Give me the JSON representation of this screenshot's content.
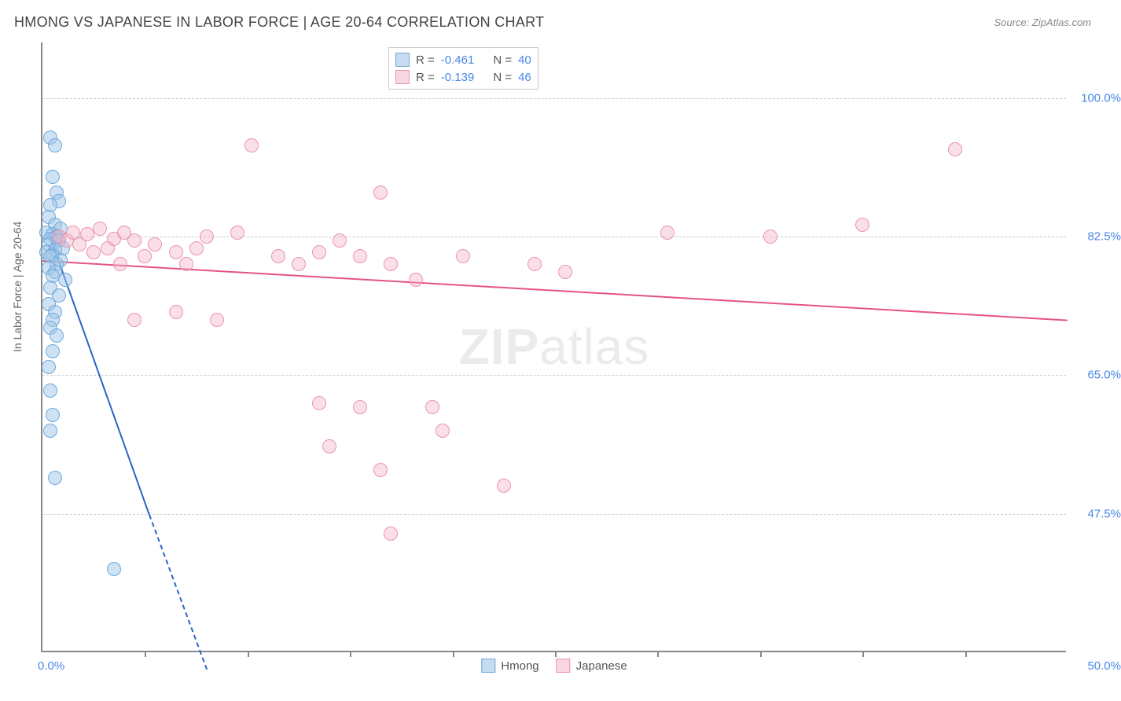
{
  "title": "HMONG VS JAPANESE IN LABOR FORCE | AGE 20-64 CORRELATION CHART",
  "source": "Source: ZipAtlas.com",
  "watermark": {
    "bold": "ZIP",
    "rest": "atlas"
  },
  "chart": {
    "type": "scatter",
    "xlim": [
      0,
      50
    ],
    "ylim": [
      30,
      107
    ],
    "x_axis_label_left": "0.0%",
    "x_axis_label_right": "50.0%",
    "y_ticks": [
      {
        "v": 100.0,
        "label": "100.0%"
      },
      {
        "v": 82.5,
        "label": "82.5%"
      },
      {
        "v": 65.0,
        "label": "65.0%"
      },
      {
        "v": 47.5,
        "label": "47.5%"
      }
    ],
    "y_axis_title": "In Labor Force | Age 20-64",
    "x_minor_ticks": [
      5,
      10,
      15,
      20,
      25,
      30,
      35,
      40,
      45
    ],
    "background_color": "#ffffff",
    "grid_color": "#cccccc",
    "axis_color": "#888888",
    "label_color": "#4a86e8",
    "series": [
      {
        "name": "Hmong",
        "fill": "rgba(160,198,232,0.5)",
        "stroke": "#6fa8dc",
        "trend_color": "#2966c4",
        "R": "-0.461",
        "N": "40",
        "trend": {
          "x1": 0.3,
          "y1": 83,
          "x2": 5.2,
          "y2": 47.5
        },
        "trend_dash": {
          "x1": 5.2,
          "y1": 47.5,
          "x2": 8.0,
          "y2": 28
        },
        "points": [
          [
            0.4,
            95
          ],
          [
            0.6,
            94
          ],
          [
            0.5,
            90
          ],
          [
            0.7,
            88
          ],
          [
            0.8,
            87
          ],
          [
            0.4,
            86.5
          ],
          [
            0.3,
            85
          ],
          [
            0.6,
            84
          ],
          [
            0.9,
            83.5
          ],
          [
            0.2,
            83
          ],
          [
            0.5,
            82.8
          ],
          [
            0.7,
            82.5
          ],
          [
            0.4,
            82.2
          ],
          [
            0.8,
            82
          ],
          [
            0.3,
            81.5
          ],
          [
            1.0,
            81
          ],
          [
            0.6,
            80.8
          ],
          [
            0.2,
            80.5
          ],
          [
            0.5,
            80.2
          ],
          [
            0.4,
            80
          ],
          [
            0.9,
            79.5
          ],
          [
            0.7,
            79
          ],
          [
            0.3,
            78.5
          ],
          [
            0.6,
            78
          ],
          [
            0.5,
            77.5
          ],
          [
            1.1,
            77
          ],
          [
            0.4,
            76
          ],
          [
            0.8,
            75
          ],
          [
            0.3,
            74
          ],
          [
            0.6,
            73
          ],
          [
            0.5,
            72
          ],
          [
            0.4,
            71
          ],
          [
            0.7,
            70
          ],
          [
            0.5,
            68
          ],
          [
            0.3,
            66
          ],
          [
            0.4,
            63
          ],
          [
            0.5,
            60
          ],
          [
            0.6,
            52
          ],
          [
            3.5,
            40.5
          ],
          [
            0.4,
            58
          ]
        ]
      },
      {
        "name": "Japanese",
        "fill": "rgba(244,176,196,0.4)",
        "stroke": "#e895b0",
        "trend_color": "#e6537e",
        "R": "-0.139",
        "N": "46",
        "trend": {
          "x1": 0,
          "y1": 79.5,
          "x2": 50,
          "y2": 72
        },
        "points": [
          [
            0.8,
            82.5
          ],
          [
            1.2,
            82
          ],
          [
            1.5,
            83
          ],
          [
            1.8,
            81.5
          ],
          [
            2.2,
            82.8
          ],
          [
            2.5,
            80.5
          ],
          [
            2.8,
            83.5
          ],
          [
            3.2,
            81
          ],
          [
            3.5,
            82.2
          ],
          [
            3.8,
            79
          ],
          [
            4.0,
            83
          ],
          [
            4.5,
            82
          ],
          [
            5.0,
            80
          ],
          [
            5.5,
            81.5
          ],
          [
            6.5,
            80.5
          ],
          [
            7.0,
            79
          ],
          [
            7.5,
            81
          ],
          [
            8.0,
            82.5
          ],
          [
            9.5,
            83
          ],
          [
            10.2,
            94
          ],
          [
            11.5,
            80
          ],
          [
            12.5,
            79
          ],
          [
            13.5,
            80.5
          ],
          [
            14.5,
            82
          ],
          [
            16.5,
            88
          ],
          [
            15.5,
            80
          ],
          [
            17.0,
            79
          ],
          [
            18.2,
            77
          ],
          [
            4.5,
            72
          ],
          [
            6.5,
            73
          ],
          [
            8.5,
            72
          ],
          [
            13.5,
            61.5
          ],
          [
            15.5,
            61
          ],
          [
            14.0,
            56
          ],
          [
            16.5,
            53
          ],
          [
            17.0,
            45
          ],
          [
            19.0,
            61
          ],
          [
            19.5,
            58
          ],
          [
            20.5,
            80
          ],
          [
            22.5,
            51
          ],
          [
            24.0,
            79
          ],
          [
            30.5,
            83
          ],
          [
            35.5,
            82.5
          ],
          [
            40.0,
            84
          ],
          [
            44.5,
            93.5
          ],
          [
            25.5,
            78
          ]
        ]
      }
    ],
    "legend_labels": [
      "Hmong",
      "Japanese"
    ],
    "corr_labels": {
      "R": "R =",
      "N": "N ="
    }
  }
}
